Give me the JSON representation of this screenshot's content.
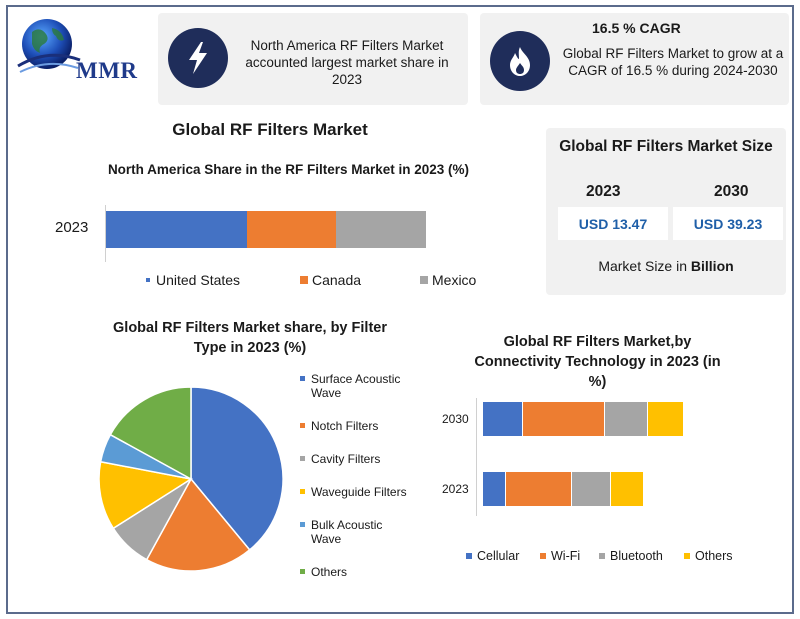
{
  "brand": {
    "logo_text": "MMR"
  },
  "colors": {
    "blue": "#4472c4",
    "orange": "#ed7d31",
    "gray": "#a5a5a5",
    "yellow": "#ffc000",
    "light_blue": "#5b9bd5",
    "green": "#70ad47",
    "navy": "#1f2d5a"
  },
  "cards": {
    "left": {
      "icon": "lightning-icon",
      "text": "North America RF Filters Market accounted largest market share in 2023"
    },
    "right": {
      "icon": "flame-icon",
      "title": "16.5 % CAGR",
      "text": "Global RF Filters Market to grow at a CAGR of 16.5 % during 2024-2030"
    }
  },
  "main_title": "Global RF Filters Market",
  "market_size": {
    "title": "Global RF Filters Market Size",
    "year_a": "2023",
    "year_b": "2030",
    "value_a": "USD 13.47",
    "value_b": "USD 39.23",
    "footer_prefix": "Market Size in ",
    "footer_bold": "Billion"
  },
  "chart_data": [
    {
      "type": "bar",
      "orientation": "horizontal-stacked",
      "title": "North America Share in the RF Filters Market in 2023 (%)",
      "categories": [
        "2023"
      ],
      "series": [
        {
          "name": "United States",
          "values": [
            44
          ]
        },
        {
          "name": "Canada",
          "values": [
            28
          ]
        },
        {
          "name": "Mexico",
          "values": [
            28
          ]
        }
      ],
      "legend": "bottom"
    },
    {
      "type": "pie",
      "title": "Global RF Filters Market share, by Filter Type in 2023 (%)",
      "categories": [
        "Surface Acoustic Wave",
        "Notch Filters",
        "Cavity Filters",
        "Waveguide Filters",
        "Bulk Acoustic Wave",
        "Others"
      ],
      "values": [
        39,
        19,
        8,
        12,
        5,
        17
      ],
      "legend": "right"
    },
    {
      "type": "bar",
      "orientation": "horizontal-stacked",
      "title": "Global RF Filters Market,by Connectivity Technology in 2023 (in %)",
      "categories": [
        "2030",
        "2023"
      ],
      "series": [
        {
          "name": "Cellular",
          "values": [
            40,
            23
          ]
        },
        {
          "name": "Wi-Fi",
          "values": [
            82,
            66
          ]
        },
        {
          "name": "Bluetooth",
          "values": [
            43,
            39
          ]
        },
        {
          "name": "Others",
          "values": [
            36,
            33
          ]
        }
      ],
      "legend": "bottom"
    }
  ]
}
